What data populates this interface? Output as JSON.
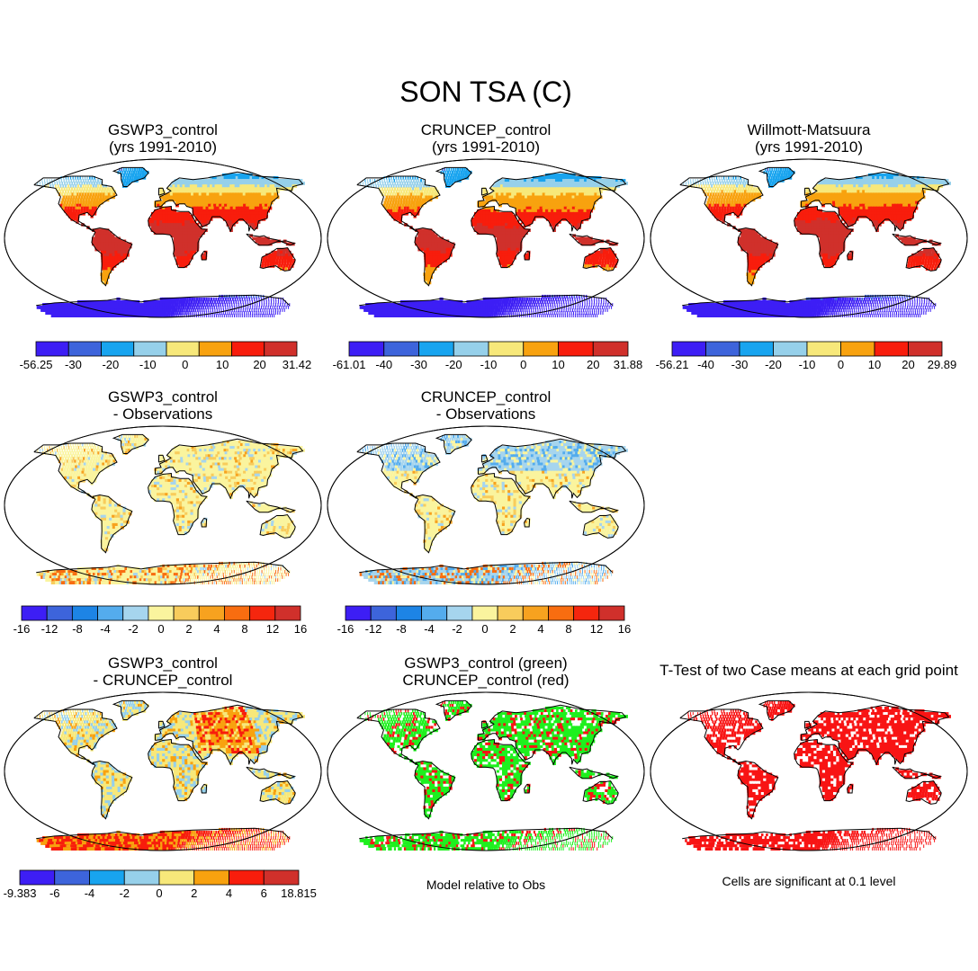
{
  "title": "SON TSA (C)",
  "colors": {
    "temp_scale": [
      "#3d1ef5",
      "#3d64db",
      "#18a4ef",
      "#96d0ea",
      "#f7e87a",
      "#f8a20f",
      "#f81d0c",
      "#d0302b"
    ],
    "diff_scale": [
      "#3d1ef5",
      "#3d64db",
      "#1d84e5",
      "#54aced",
      "#a6d5ee",
      "#faf49e",
      "#f8cc5c",
      "#f7a21f",
      "#f86d10",
      "#f5260e",
      "#d0302b"
    ],
    "sig_red": "#f81414",
    "model_green": "#1ef01e"
  },
  "panels": [
    {
      "title1": "GSWP3_control",
      "title2": "(yrs 1991-2010)",
      "type": "abs",
      "variant": 0
    },
    {
      "title1": "CRUNCEP_control",
      "title2": "(yrs 1991-2010)",
      "type": "abs",
      "variant": 1
    },
    {
      "title1": "Willmott-Matsuura",
      "title2": "(yrs 1991-2010)",
      "type": "abs",
      "variant": 2
    },
    {
      "title1": "GSWP3_control",
      "title2": "- Observations",
      "type": "bias",
      "variant": 0
    },
    {
      "title1": "CRUNCEP_control",
      "title2": "- Observations",
      "type": "bias",
      "variant": 1
    },
    {
      "title1": "GSWP3_control",
      "title2": "- CRUNCEP_control",
      "type": "modeldiff",
      "variant": 0
    },
    {
      "title1": "GSWP3_control (green)",
      "title2": "CRUNCEP_control (red)",
      "type": "greenred",
      "variant": 0
    },
    {
      "title1": "T-Test of two Case means at each grid point",
      "title2": "",
      "type": "ttest",
      "variant": 0
    }
  ],
  "colorbars": [
    {
      "labels": [
        "-56.25",
        "-30",
        "-20",
        "-10",
        "0",
        "10",
        "20",
        "31.42"
      ],
      "scale": "temp_scale"
    },
    {
      "labels": [
        "-61.01",
        "-40",
        "-30",
        "-20",
        "-10",
        "0",
        "10",
        "20",
        "31.88"
      ],
      "scale": "temp_scale"
    },
    {
      "labels": [
        "-56.21",
        "-40",
        "-30",
        "-20",
        "-10",
        "0",
        "10",
        "20",
        "29.89"
      ],
      "scale": "temp_scale"
    },
    {
      "labels": [
        "-16",
        "-12",
        "-8",
        "-4",
        "-2",
        "0",
        "2",
        "4",
        "8",
        "12",
        "16"
      ],
      "scale": "diff_scale"
    },
    {
      "labels": [
        "-16",
        "-12",
        "-8",
        "-4",
        "-2",
        "0",
        "2",
        "4",
        "8",
        "12",
        "16"
      ],
      "scale": "diff_scale"
    },
    {
      "labels": [
        "-9.383",
        "-6",
        "-4",
        "-2",
        "0",
        "2",
        "4",
        "6",
        "18.815"
      ],
      "scale": "temp_scale"
    }
  ],
  "captions": {
    "greenred": "Model relative to Obs",
    "ttest": "Cells are significant at 0.1 level"
  }
}
